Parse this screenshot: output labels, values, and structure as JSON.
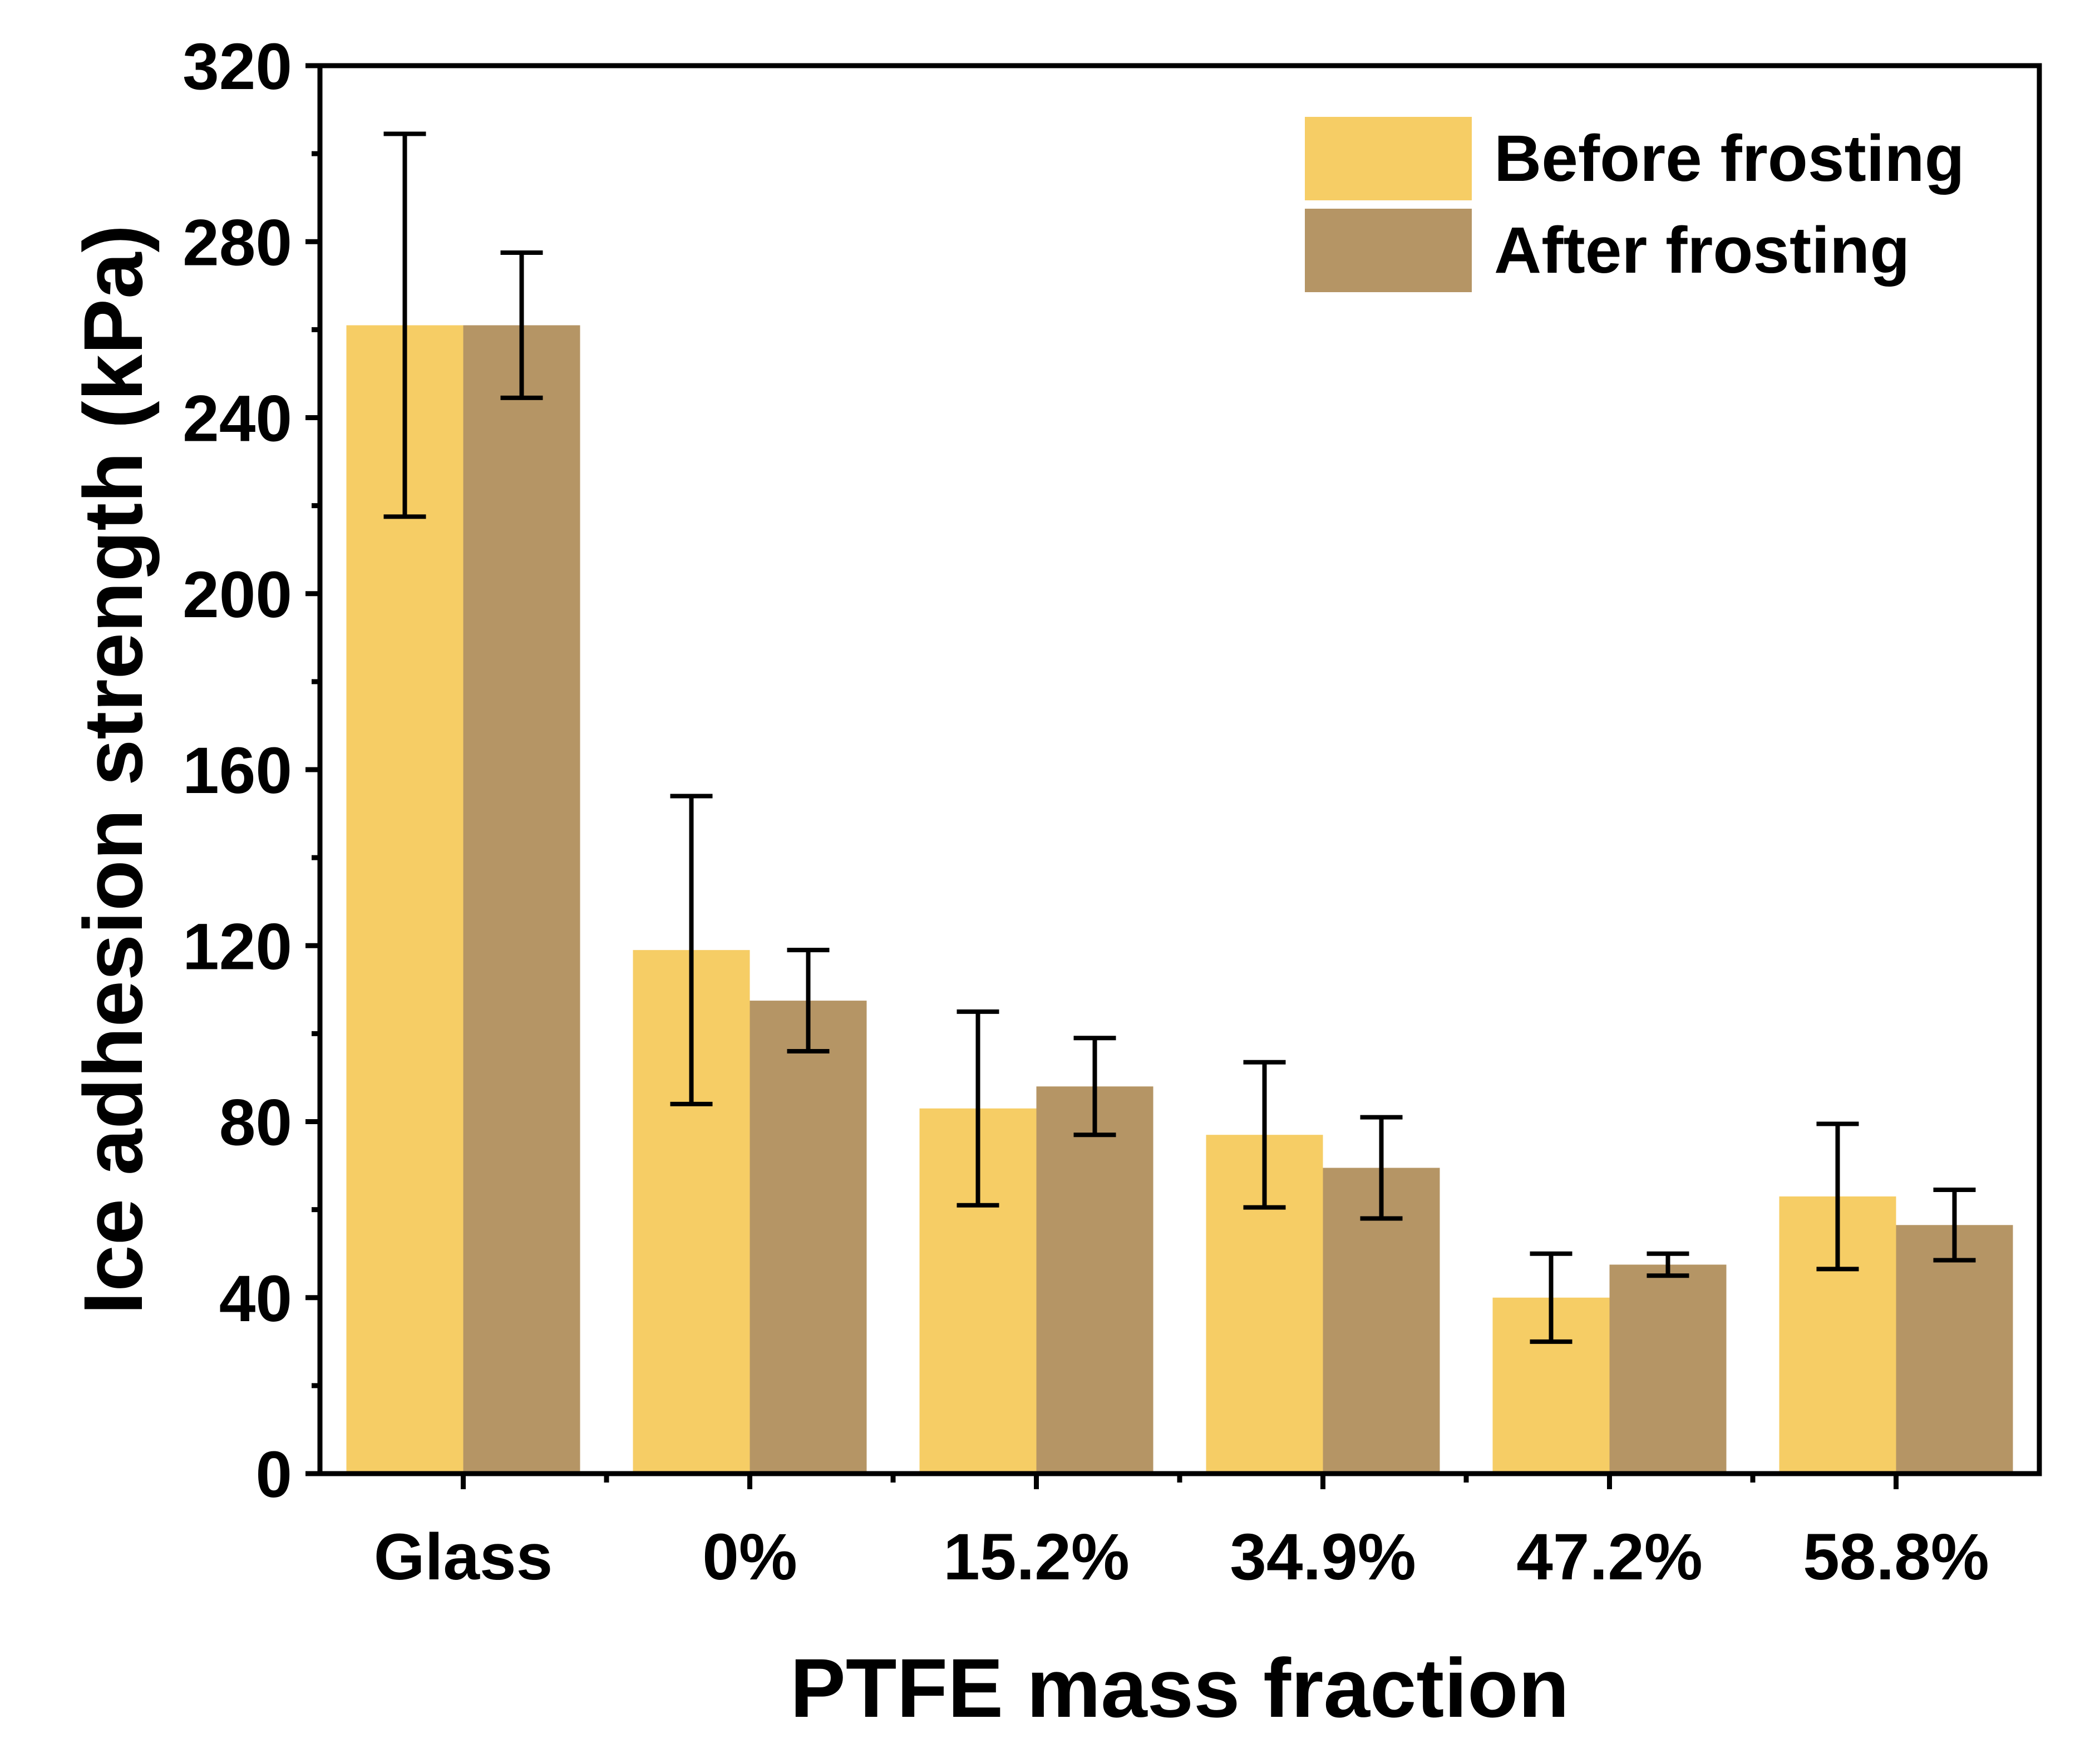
{
  "chart_data": {
    "type": "bar",
    "title": "",
    "xlabel": "PTFE mass fraction",
    "ylabel": "Ice adhesion strength (kPa)",
    "ylim": [
      0,
      320
    ],
    "yticks": [
      0,
      40,
      80,
      120,
      160,
      200,
      240,
      280,
      320
    ],
    "categories": [
      "Glass",
      "0%",
      "15.2%",
      "34.9%",
      "47.2%",
      "58.8%"
    ],
    "series": [
      {
        "name": "Before frosting",
        "color": "#F6CD65",
        "values": [
          261,
          119,
          83,
          77,
          40,
          63
        ],
        "error": [
          43.5,
          35,
          22,
          16.5,
          10,
          16.5
        ]
      },
      {
        "name": "After frosting",
        "color": "#B59565",
        "values": [
          261,
          107.5,
          88,
          69.5,
          47.5,
          56.5
        ],
        "error": [
          16.5,
          11.5,
          11,
          11.5,
          2.5,
          8
        ]
      }
    ],
    "legend_position": "top-right",
    "grid": false,
    "error_bars": true
  }
}
